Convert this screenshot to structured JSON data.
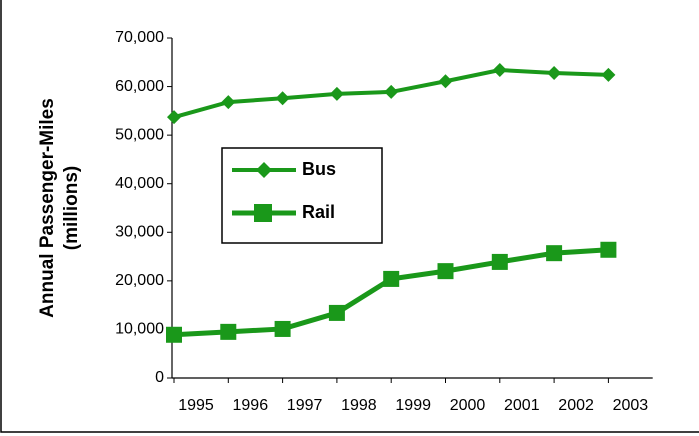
{
  "chart_data": {
    "type": "line",
    "y_label": [
      "Annual Passenger-Miles",
      "(millions)"
    ],
    "categories": [
      "1995",
      "1996",
      "1997",
      "1998",
      "1999",
      "2000",
      "2001",
      "2002",
      "2003"
    ],
    "series": [
      {
        "name": "Bus",
        "color": "#1a981a",
        "marker": "diamond",
        "values": [
          53700,
          56800,
          57600,
          58500,
          58900,
          61100,
          63400,
          62800,
          62400
        ]
      },
      {
        "name": "Rail",
        "color": "#1a981a",
        "marker": "square",
        "values": [
          8900,
          9500,
          10100,
          13400,
          20400,
          22000,
          23900,
          25700,
          26400
        ]
      }
    ],
    "ylim": [
      0,
      70000
    ],
    "yticks": [
      0,
      {
        "value": 10000,
        "label": "10,000"
      },
      {
        "value": 20000,
        "label": "20,000"
      },
      {
        "value": 30000,
        "label": "30,000"
      },
      {
        "value": 40000,
        "label": "40,000"
      },
      {
        "value": 50000,
        "label": "50,000"
      },
      {
        "value": 60000,
        "label": "60,000"
      },
      {
        "value": 70000,
        "label": "70,000"
      }
    ],
    "legend": "upper left"
  }
}
